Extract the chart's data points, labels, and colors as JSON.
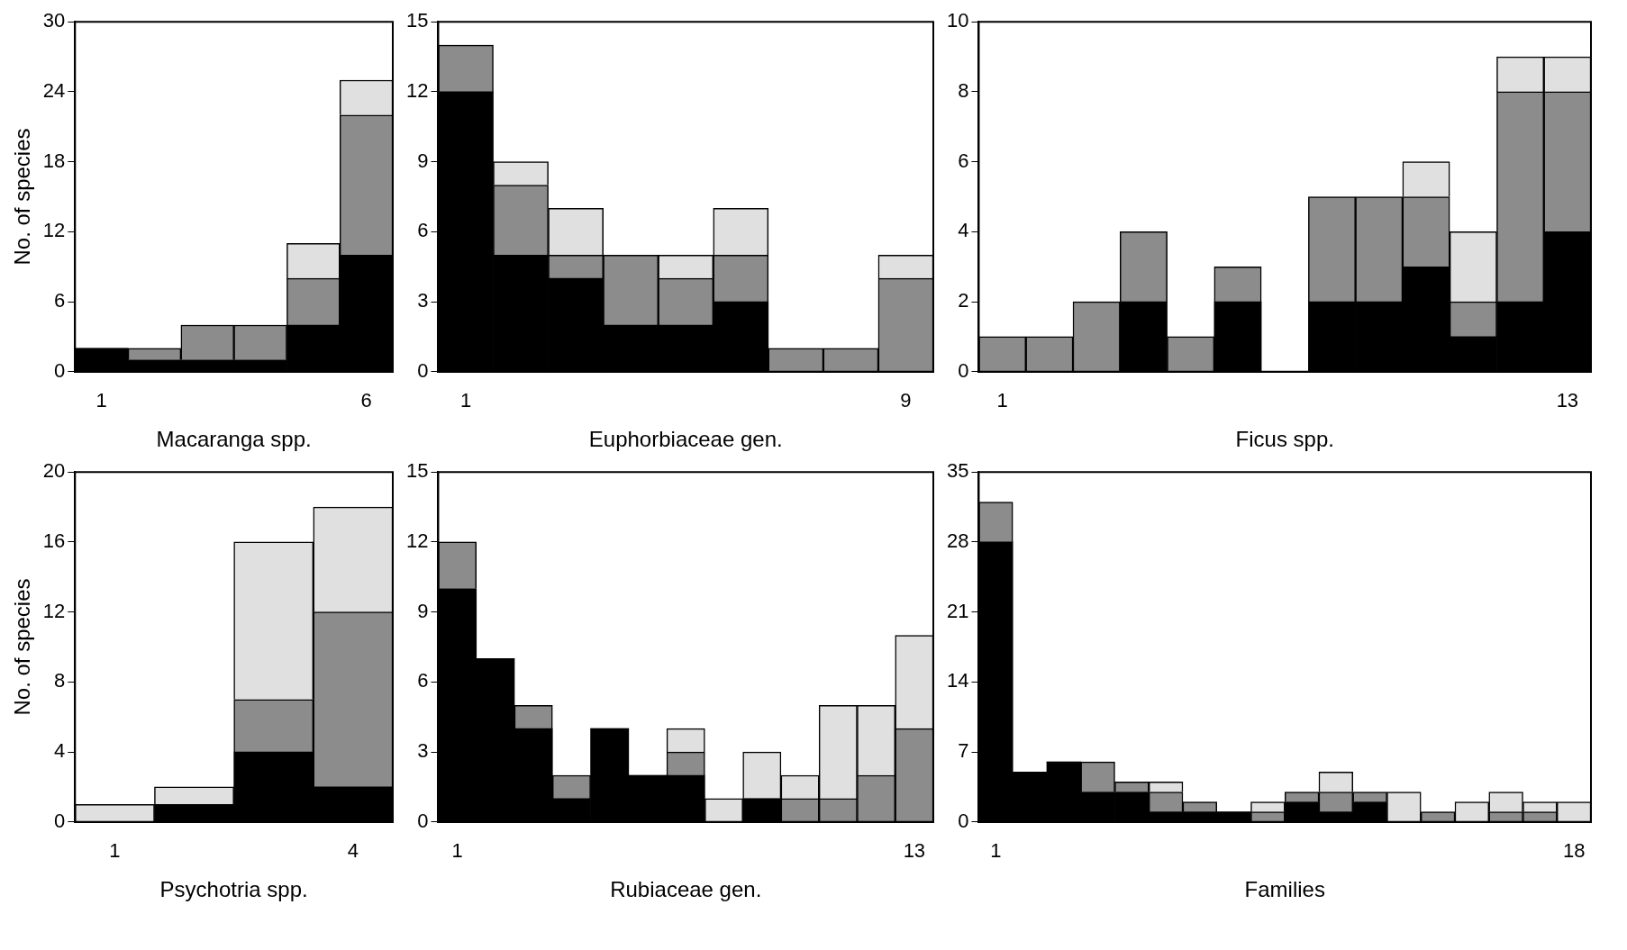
{
  "chart_data": [
    {
      "type": "bar",
      "stacked": true,
      "xlabel": "Macaranga spp.",
      "ylabel": "No. of species",
      "categories": [
        "1",
        null,
        null,
        null,
        null,
        "6"
      ],
      "ylim": [
        0,
        30
      ],
      "yticks": [
        0,
        6,
        12,
        18,
        24,
        30
      ],
      "series": [
        {
          "color": "#000000",
          "values": [
            2,
            1,
            1,
            1,
            4,
            10
          ]
        },
        {
          "color": "#8c8c8c",
          "values": [
            0,
            1,
            3,
            3,
            4,
            12
          ]
        },
        {
          "color": "#e0e0e0",
          "values": [
            0,
            0,
            0,
            0,
            3,
            3
          ]
        }
      ]
    },
    {
      "type": "bar",
      "stacked": true,
      "xlabel": "Euphorbiaceae gen.",
      "categories": [
        "1",
        null,
        null,
        null,
        null,
        null,
        null,
        null,
        "9"
      ],
      "ylim": [
        0,
        15
      ],
      "yticks": [
        0,
        3,
        6,
        9,
        12,
        15
      ],
      "series": [
        {
          "color": "#000000",
          "values": [
            12,
            5,
            4,
            2,
            2,
            3,
            0,
            0,
            0
          ]
        },
        {
          "color": "#8c8c8c",
          "values": [
            2,
            3,
            1,
            3,
            2,
            2,
            1,
            1,
            4
          ]
        },
        {
          "color": "#e0e0e0",
          "values": [
            0,
            1,
            2,
            0,
            1,
            2,
            0,
            0,
            1
          ]
        }
      ]
    },
    {
      "type": "bar",
      "stacked": true,
      "xlabel": "Ficus spp.",
      "categories": [
        "1",
        null,
        null,
        null,
        null,
        null,
        null,
        null,
        null,
        null,
        null,
        null,
        "13"
      ],
      "ylim": [
        0,
        10
      ],
      "yticks": [
        0,
        2,
        4,
        6,
        8,
        10
      ],
      "series": [
        {
          "color": "#000000",
          "values": [
            0,
            0,
            0,
            2,
            0,
            2,
            0,
            2,
            2,
            3,
            1,
            2,
            4
          ]
        },
        {
          "color": "#8c8c8c",
          "values": [
            1,
            1,
            2,
            2,
            1,
            1,
            0,
            3,
            3,
            2,
            1,
            6,
            4
          ]
        },
        {
          "color": "#e0e0e0",
          "values": [
            0,
            0,
            0,
            0,
            0,
            0,
            0,
            0,
            0,
            1,
            2,
            1,
            1
          ]
        }
      ]
    },
    {
      "type": "bar",
      "stacked": true,
      "xlabel": "Psychotria spp.",
      "ylabel": "No. of species",
      "categories": [
        "1",
        null,
        null,
        "4"
      ],
      "ylim": [
        0,
        20
      ],
      "yticks": [
        0,
        4,
        8,
        12,
        16,
        20
      ],
      "series": [
        {
          "color": "#000000",
          "values": [
            0,
            1,
            4,
            2
          ]
        },
        {
          "color": "#8c8c8c",
          "values": [
            0,
            0,
            3,
            10
          ]
        },
        {
          "color": "#e0e0e0",
          "values": [
            1,
            1,
            9,
            6
          ]
        }
      ]
    },
    {
      "type": "bar",
      "stacked": true,
      "xlabel": "Rubiaceae gen.",
      "categories": [
        "1",
        null,
        null,
        null,
        null,
        null,
        null,
        null,
        null,
        null,
        null,
        null,
        "13"
      ],
      "ylim": [
        0,
        15
      ],
      "yticks": [
        0,
        3,
        6,
        9,
        12,
        15
      ],
      "series": [
        {
          "color": "#000000",
          "values": [
            10,
            7,
            4,
            1,
            4,
            2,
            2,
            0,
            1,
            0,
            0,
            0,
            0
          ]
        },
        {
          "color": "#8c8c8c",
          "values": [
            2,
            0,
            1,
            1,
            0,
            0,
            1,
            0,
            0,
            1,
            1,
            2,
            4
          ]
        },
        {
          "color": "#e0e0e0",
          "values": [
            0,
            0,
            0,
            0,
            0,
            0,
            1,
            1,
            2,
            1,
            4,
            3,
            4
          ]
        }
      ]
    },
    {
      "type": "bar",
      "stacked": true,
      "xlabel": "Families",
      "categories": [
        "1",
        null,
        null,
        null,
        null,
        null,
        null,
        null,
        null,
        null,
        null,
        null,
        null,
        null,
        null,
        null,
        null,
        "18"
      ],
      "ylim": [
        0,
        35
      ],
      "yticks": [
        0,
        7,
        14,
        21,
        28,
        35
      ],
      "series": [
        {
          "color": "#000000",
          "values": [
            28,
            5,
            6,
            3,
            3,
            1,
            1,
            1,
            0,
            2,
            1,
            2,
            0,
            0,
            0,
            0,
            0,
            0
          ]
        },
        {
          "color": "#8c8c8c",
          "values": [
            4,
            0,
            0,
            3,
            1,
            2,
            1,
            0,
            1,
            1,
            2,
            1,
            0,
            1,
            0,
            1,
            1,
            0
          ]
        },
        {
          "color": "#e0e0e0",
          "values": [
            0,
            0,
            0,
            0,
            0,
            1,
            0,
            0,
            1,
            0,
            2,
            0,
            3,
            0,
            2,
            2,
            1,
            2
          ]
        }
      ]
    }
  ]
}
